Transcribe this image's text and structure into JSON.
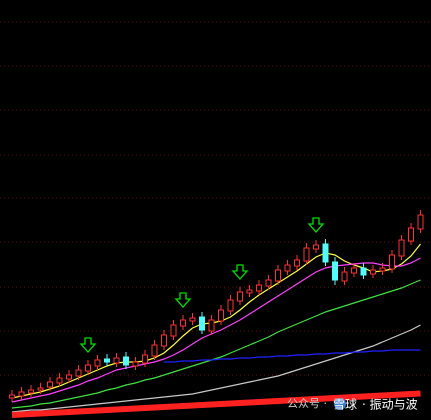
{
  "chart_data": {
    "type": "candlestick",
    "ylim": [
      0,
      420
    ],
    "up_color": "#ff3232",
    "down_color": "#54fcfc",
    "signal_color": "#00e000",
    "open": [
      22,
      24,
      27,
      30,
      33,
      37,
      41,
      44,
      49,
      54,
      61,
      57,
      63,
      54,
      57,
      64,
      74,
      84,
      94,
      99,
      103,
      89,
      99,
      109,
      119,
      127,
      129,
      134,
      139,
      149,
      154,
      159,
      171,
      176,
      158,
      139,
      147,
      152,
      146,
      149,
      151,
      164,
      179,
      191
    ],
    "high": [
      30,
      33,
      35,
      37,
      43,
      47,
      50,
      55,
      60,
      65,
      66,
      67,
      68,
      63,
      70,
      80,
      90,
      100,
      105,
      107,
      108,
      105,
      115,
      125,
      133,
      135,
      140,
      145,
      155,
      160,
      165,
      177,
      180,
      181,
      163,
      153,
      157,
      157,
      155,
      157,
      170,
      185,
      197,
      210
    ],
    "low": [
      18,
      20,
      23,
      26,
      29,
      33,
      37,
      40,
      45,
      50,
      54,
      53,
      51,
      50,
      53,
      60,
      70,
      80,
      90,
      95,
      86,
      85,
      95,
      105,
      115,
      123,
      125,
      130,
      135,
      145,
      150,
      155,
      167,
      154,
      135,
      135,
      143,
      141,
      142,
      145,
      147,
      160,
      175,
      187
    ],
    "close": [
      25,
      28,
      30,
      32,
      38,
      42,
      45,
      50,
      55,
      60,
      58,
      62,
      55,
      58,
      65,
      75,
      85,
      95,
      100,
      102,
      90,
      100,
      110,
      120,
      128,
      130,
      135,
      140,
      150,
      155,
      160,
      172,
      175,
      158,
      140,
      148,
      152,
      145,
      150,
      152,
      165,
      180,
      192,
      205
    ],
    "lines": [
      {
        "color": "#ffff40",
        "values": [
          22,
          24,
          26,
          28,
          31,
          34,
          38,
          42,
          46,
          50,
          54,
          57,
          58,
          58,
          59,
          62,
          67,
          75,
          84,
          92,
          96,
          97,
          99,
          103,
          110,
          118,
          125,
          131,
          137,
          143,
          149,
          156,
          163,
          167,
          165,
          159,
          155,
          152,
          148,
          149,
          151,
          156,
          164,
          176
        ]
      },
      {
        "color": "#ff40ff",
        "values": [
          18,
          20,
          22,
          24,
          26,
          29,
          32,
          35,
          39,
          42,
          46,
          50,
          52,
          54,
          56,
          58,
          61,
          65,
          70,
          76,
          82,
          86,
          90,
          95,
          100,
          106,
          112,
          118,
          124,
          130,
          136,
          142,
          148,
          152,
          154,
          155,
          156,
          157,
          157,
          155,
          154,
          154,
          157,
          162
        ]
      },
      {
        "color": "#40e040",
        "values": [
          12,
          13,
          14,
          16,
          17,
          19,
          21,
          23,
          25,
          27,
          30,
          32,
          35,
          37,
          40,
          42,
          45,
          48,
          51,
          54,
          57,
          60,
          63,
          67,
          71,
          75,
          79,
          83,
          88,
          92,
          96,
          100,
          104,
          108,
          111,
          114,
          117,
          120,
          123,
          126,
          129,
          132,
          136,
          140
        ]
      },
      {
        "color": "#c8c8c8",
        "values": [
          8,
          9,
          10,
          10,
          11,
          12,
          13,
          14,
          15,
          16,
          17,
          18,
          19,
          20,
          21,
          22,
          23,
          24,
          25,
          26,
          28,
          30,
          32,
          34,
          36,
          38,
          40,
          42,
          44,
          47,
          50,
          53,
          56,
          59,
          62,
          65,
          68,
          71,
          74,
          78,
          82,
          86,
          90,
          95
        ]
      },
      {
        "color": "#2020ff",
        "values": [
          null,
          null,
          null,
          null,
          null,
          null,
          null,
          null,
          null,
          null,
          null,
          null,
          null,
          null,
          null,
          null,
          58,
          58,
          59,
          59,
          60,
          60,
          61,
          61,
          62,
          62,
          63,
          63,
          64,
          64,
          65,
          65,
          66,
          66,
          67,
          67,
          68,
          68,
          69,
          69,
          70,
          70,
          70,
          70
        ]
      },
      {
        "color": "#ff2020",
        "width": 6,
        "values": [
          5,
          5.5,
          6,
          6.5,
          7,
          7.5,
          8,
          8.5,
          9,
          9.5,
          10,
          10.5,
          11,
          11.5,
          12,
          12.5,
          13,
          13.5,
          14,
          14.5,
          15,
          15.5,
          16,
          16.5,
          17,
          17.5,
          18,
          18.5,
          19,
          19.5,
          20,
          20.5,
          21,
          21.5,
          22,
          22.5,
          23,
          23.5,
          24,
          24.5,
          25,
          25.5,
          26,
          26.5
        ]
      }
    ],
    "signals": [
      8,
      18,
      24,
      32
    ],
    "watermark": [
      "公众号 ·",
      "雪球",
      "· 振动与波"
    ]
  }
}
